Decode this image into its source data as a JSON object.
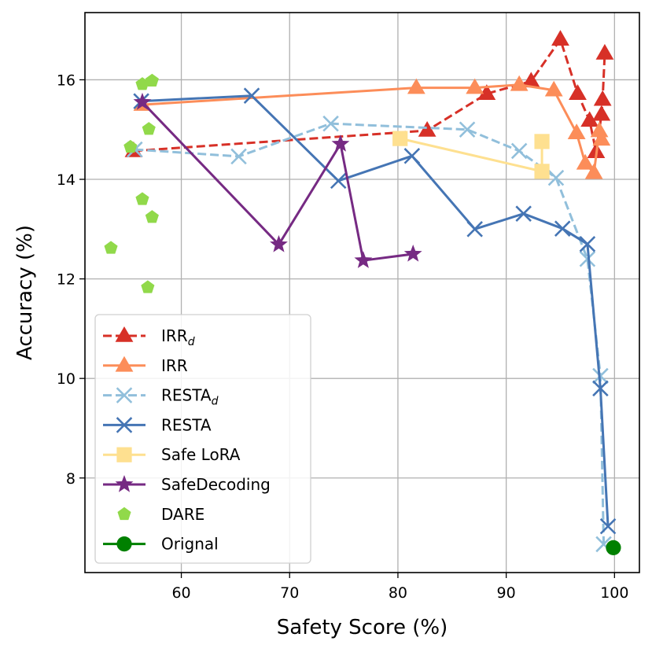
{
  "chart_data": {
    "type": "line",
    "title": "",
    "xlabel": "Safety Score (%)",
    "ylabel": "Accuracy (%)",
    "xlim": [
      51.1,
      102.3
    ],
    "ylim": [
      6.1,
      17.35
    ],
    "xticks": [
      60,
      70,
      80,
      90,
      100
    ],
    "yticks": [
      8,
      10,
      12,
      14,
      16
    ],
    "xtick_labels": [
      "60",
      "70",
      "80",
      "90",
      "100"
    ],
    "ytick_labels": [
      "8",
      "10",
      "12",
      "14",
      "16"
    ],
    "grid": true,
    "legend_position": "lower-left",
    "series": [
      {
        "name": "IRR",
        "subscript": "d",
        "color": "#d73027",
        "linestyle": "dashed",
        "marker": "triangle",
        "x": [
          55.6,
          82.7,
          88.2,
          92.3,
          95.0,
          96.6,
          97.7,
          98.3,
          98.8,
          98.9,
          99.1
        ],
        "y": [
          14.57,
          14.98,
          15.72,
          15.97,
          16.81,
          15.72,
          15.18,
          14.55,
          15.3,
          15.6,
          16.53
        ]
      },
      {
        "name": "IRR",
        "subscript": "",
        "color": "#fc8d59",
        "linestyle": "solid",
        "marker": "triangle",
        "x": [
          56.4,
          81.7,
          87.1,
          91.2,
          94.4,
          96.5,
          97.3,
          98.1,
          98.6,
          98.8
        ],
        "y": [
          15.5,
          15.84,
          15.84,
          15.9,
          15.79,
          14.93,
          14.32,
          14.13,
          14.97,
          14.8
        ]
      },
      {
        "name": "RESTA",
        "subscript": "d",
        "color": "#91bfdb",
        "linestyle": "dashed",
        "marker": "x",
        "x": [
          55.7,
          65.3,
          73.8,
          86.4,
          91.2,
          94.6,
          97.5,
          98.7,
          99.0
        ],
        "y": [
          14.6,
          14.46,
          15.12,
          15.0,
          14.57,
          14.03,
          12.4,
          10.05,
          6.67
        ]
      },
      {
        "name": "RESTA",
        "subscript": "",
        "color": "#4575b4",
        "linestyle": "solid",
        "marker": "x",
        "x": [
          56.3,
          66.5,
          74.5,
          81.3,
          87.1,
          91.6,
          95.2,
          97.5,
          98.7,
          99.4
        ],
        "y": [
          15.57,
          15.68,
          13.97,
          14.47,
          13.0,
          13.31,
          13.01,
          12.7,
          9.8,
          7.03
        ]
      },
      {
        "name": "Safe LoRA",
        "subscript": "",
        "color": "#fee090",
        "linestyle": "solid",
        "marker": "square",
        "x": [
          80.2,
          93.3,
          93.3
        ],
        "y": [
          14.82,
          14.16,
          14.76
        ]
      },
      {
        "name": "SafeDecoding",
        "subscript": "",
        "color": "#762a83",
        "linestyle": "solid",
        "marker": "star",
        "x": [
          56.4,
          69.0,
          74.7,
          76.8,
          81.4
        ],
        "y": [
          15.55,
          12.69,
          14.71,
          12.37,
          12.5
        ]
      },
      {
        "name": "DARE",
        "subscript": "",
        "color": "#91d94a",
        "linestyle": "none",
        "marker": "pentagon",
        "x": [
          56.4,
          57.3,
          57.0,
          55.3,
          56.4,
          57.3,
          53.5,
          56.9
        ],
        "y": [
          15.91,
          15.98,
          15.01,
          14.65,
          13.6,
          13.24,
          12.62,
          11.83
        ]
      },
      {
        "name": "Orignal",
        "subscript": "",
        "color": "#008000",
        "linestyle": "solid",
        "marker": "circle",
        "x": [
          99.9
        ],
        "y": [
          6.6
        ]
      }
    ]
  }
}
